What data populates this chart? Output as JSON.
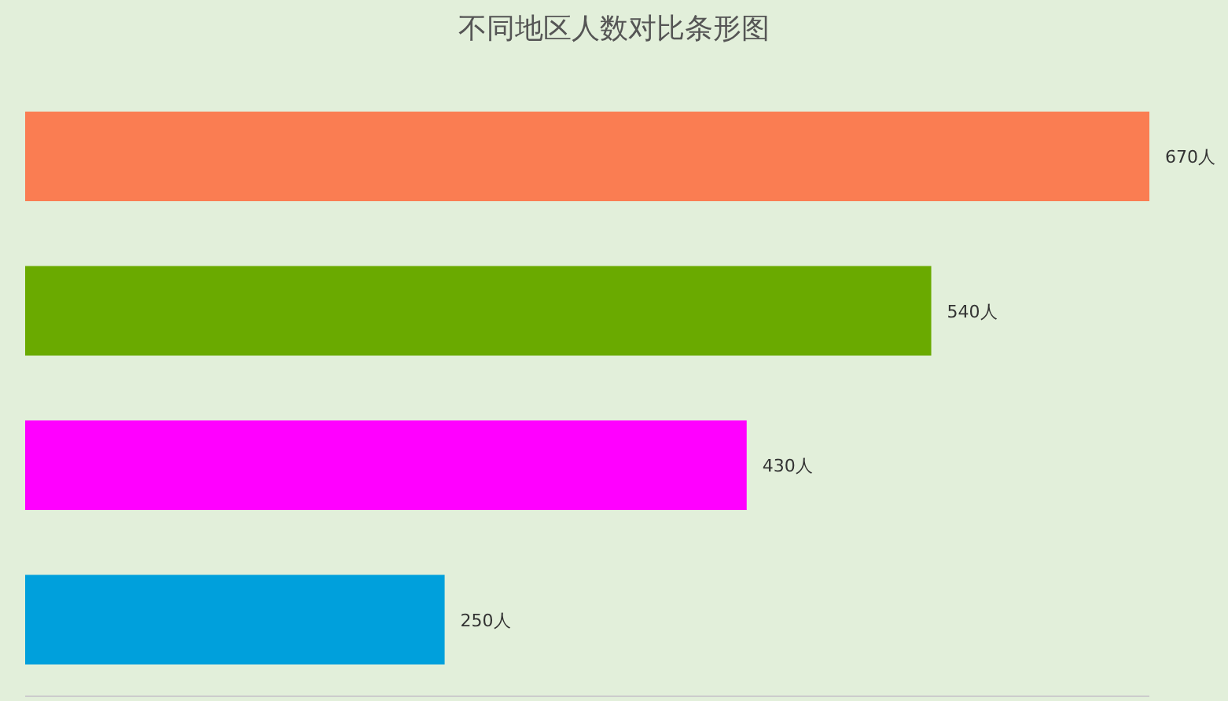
{
  "chart_data": {
    "type": "bar",
    "orientation": "horizontal",
    "title": "不同地区人数对比条形图",
    "categories": [
      null,
      null,
      null,
      null
    ],
    "values": [
      670,
      540,
      430,
      250
    ],
    "colors": [
      "#fa7d52",
      "#6aaa00",
      "#ff00ff",
      "#00a0dc"
    ],
    "value_labels": [
      "670人",
      "540人",
      "430人",
      "250人"
    ]
  }
}
